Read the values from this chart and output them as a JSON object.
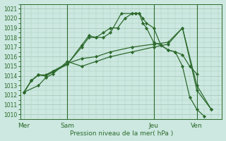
{
  "background_color": "#cce8e0",
  "plot_bg_color": "#cce8e0",
  "grid_color": "#aaccbb",
  "line_color": "#2d6a2d",
  "ylim": [
    1009.5,
    1021.5
  ],
  "yticks": [
    1010,
    1011,
    1012,
    1013,
    1014,
    1015,
    1016,
    1017,
    1018,
    1019,
    1020,
    1021
  ],
  "xlabel": "Pression niveau de la mer( hPa )",
  "day_labels": [
    "Mer",
    "Sam",
    "Jeu",
    "Ven"
  ],
  "day_positions": [
    0,
    24,
    72,
    96
  ],
  "xlim": [
    -2,
    110
  ],
  "series": [
    {
      "x": [
        0,
        4,
        8,
        12,
        16,
        24,
        32,
        36,
        40,
        44,
        48,
        52,
        56,
        60,
        62,
        64,
        66,
        68,
        72,
        76,
        80,
        84,
        88,
        92,
        96
      ],
      "y": [
        1012.3,
        1013.5,
        1014.1,
        1014.0,
        1014.4,
        1015.2,
        1017.0,
        1018.0,
        1018.0,
        1018.5,
        1019.0,
        1019.0,
        1020.0,
        1020.5,
        1020.5,
        1020.5,
        1020.0,
        1019.5,
        1019.0,
        1017.2,
        1016.7,
        1016.5,
        1016.2,
        1015.0,
        1014.2
      ]
    },
    {
      "x": [
        0,
        4,
        8,
        12,
        16,
        24,
        32,
        36,
        40,
        44,
        48,
        54,
        60,
        62,
        64,
        66,
        68,
        72,
        76,
        80,
        84,
        88,
        92,
        96,
        100
      ],
      "y": [
        1012.3,
        1013.5,
        1014.1,
        1014.0,
        1014.4,
        1015.2,
        1017.2,
        1018.2,
        1018.0,
        1018.0,
        1018.5,
        1020.5,
        1020.5,
        1020.5,
        1020.5,
        1019.5,
        1019.0,
        1017.5,
        1017.2,
        1016.7,
        1016.5,
        1015.0,
        1011.8,
        1010.5,
        1009.8
      ]
    },
    {
      "x": [
        0,
        4,
        8,
        12,
        16,
        24,
        32,
        40,
        48,
        60,
        72,
        80,
        88,
        96,
        104
      ],
      "y": [
        1012.3,
        1013.5,
        1014.1,
        1014.1,
        1014.5,
        1015.3,
        1015.8,
        1016.0,
        1016.5,
        1017.0,
        1017.3,
        1017.5,
        1019.0,
        1013.0,
        1010.5
      ]
    },
    {
      "x": [
        0,
        8,
        12,
        16,
        24,
        32,
        40,
        48,
        60,
        72,
        80,
        88,
        96,
        104
      ],
      "y": [
        1012.3,
        1013.0,
        1013.8,
        1014.2,
        1015.5,
        1015.0,
        1015.5,
        1016.0,
        1016.5,
        1017.0,
        1017.3,
        1019.0,
        1012.5,
        1010.5
      ]
    }
  ]
}
